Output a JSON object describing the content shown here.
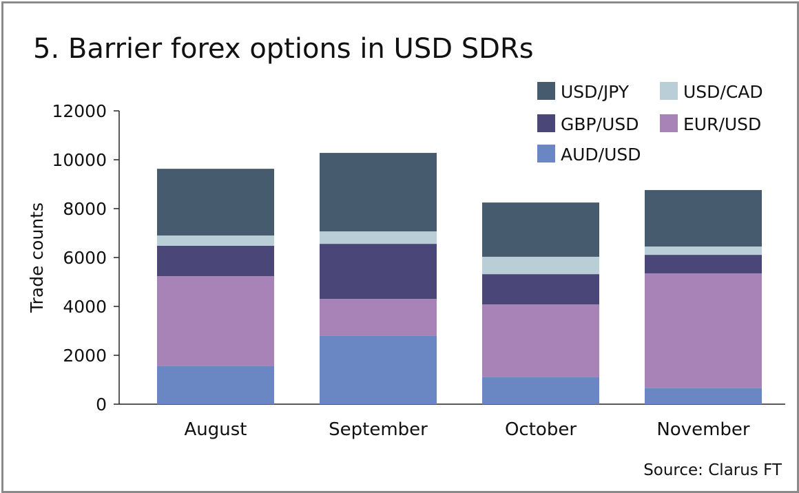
{
  "chart_data": {
    "type": "bar",
    "stacked": true,
    "title": "5. Barrier forex options in USD SDRs",
    "xlabel": "",
    "ylabel": "Trade counts",
    "ylim": [
      0,
      12000
    ],
    "yticks": [
      0,
      2000,
      4000,
      6000,
      8000,
      10000,
      12000
    ],
    "categories": [
      "August",
      "September",
      "October",
      "November"
    ],
    "series": [
      {
        "name": "AUD/USD",
        "color": "#6a87c3",
        "values": [
          1550,
          2790,
          1100,
          650
        ]
      },
      {
        "name": "EUR/USD",
        "color": "#a783b7",
        "values": [
          3690,
          1520,
          2980,
          4700
        ]
      },
      {
        "name": "GBP/USD",
        "color": "#4a4778",
        "values": [
          1240,
          2250,
          1240,
          760
        ]
      },
      {
        "name": "USD/CAD",
        "color": "#b9ced6",
        "values": [
          420,
          510,
          710,
          340
        ]
      },
      {
        "name": "USD/JPY",
        "color": "#475b6f",
        "values": [
          2730,
          3210,
          2220,
          2310
        ]
      }
    ],
    "legend": {
      "placement": "top-right",
      "order": [
        "USD/JPY",
        "USD/CAD",
        "GBP/USD",
        "EUR/USD",
        "AUD/USD"
      ]
    },
    "source": "Source: Clarus FT"
  }
}
